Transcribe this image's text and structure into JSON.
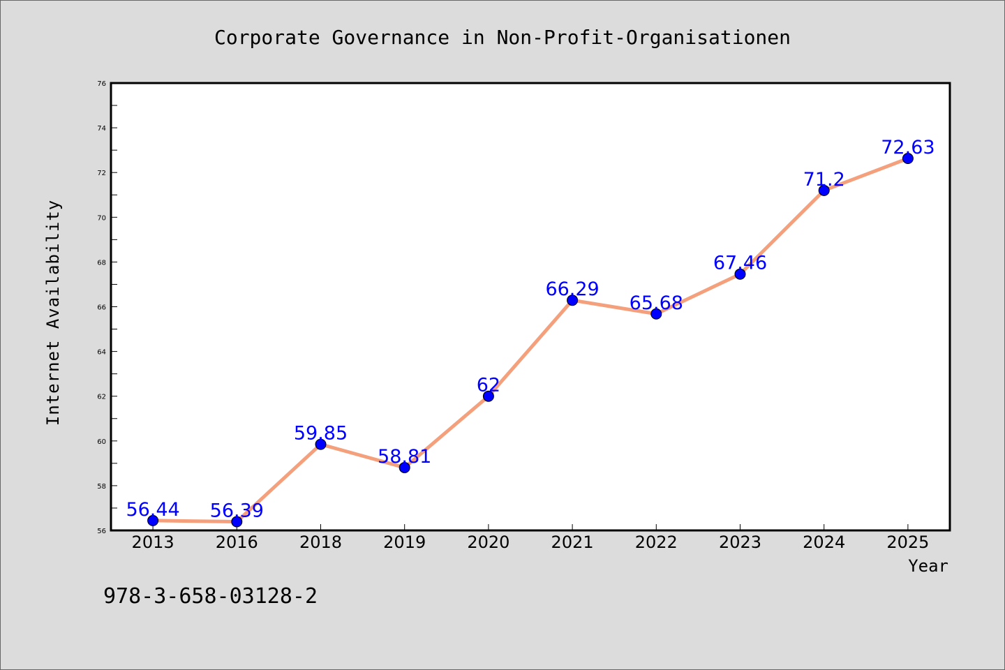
{
  "chart_data": {
    "type": "line",
    "title": "Corporate Governance in Non-Profit-Organisationen",
    "xlabel": "Year",
    "ylabel": "Internet Availability",
    "categories": [
      "2013",
      "2016",
      "2018",
      "2019",
      "2020",
      "2021",
      "2022",
      "2023",
      "2024",
      "2025"
    ],
    "series": [
      {
        "values": [
          56.44,
          56.39,
          59.85,
          58.81,
          62,
          66.29,
          65.68,
          67.46,
          71.2,
          72.63
        ],
        "data_labels": [
          "56.44",
          "56.39",
          "59.85",
          "58.81",
          "62",
          "66.29",
          "65.68",
          "67.46",
          "71.2",
          "72.63"
        ]
      }
    ],
    "ylim": [
      56,
      76
    ],
    "y_ticks": [
      "56",
      "58",
      "60",
      "62",
      "64",
      "66",
      "68",
      "70",
      "72",
      "74",
      "76"
    ],
    "grid": false,
    "colors": {
      "line": "#f4a07c",
      "marker": "#0000ff",
      "data_label": "#0000ff",
      "plot_background": "#ffffff",
      "page_background": "#dcdcdc"
    }
  },
  "footnote": "978-3-658-03128-2"
}
